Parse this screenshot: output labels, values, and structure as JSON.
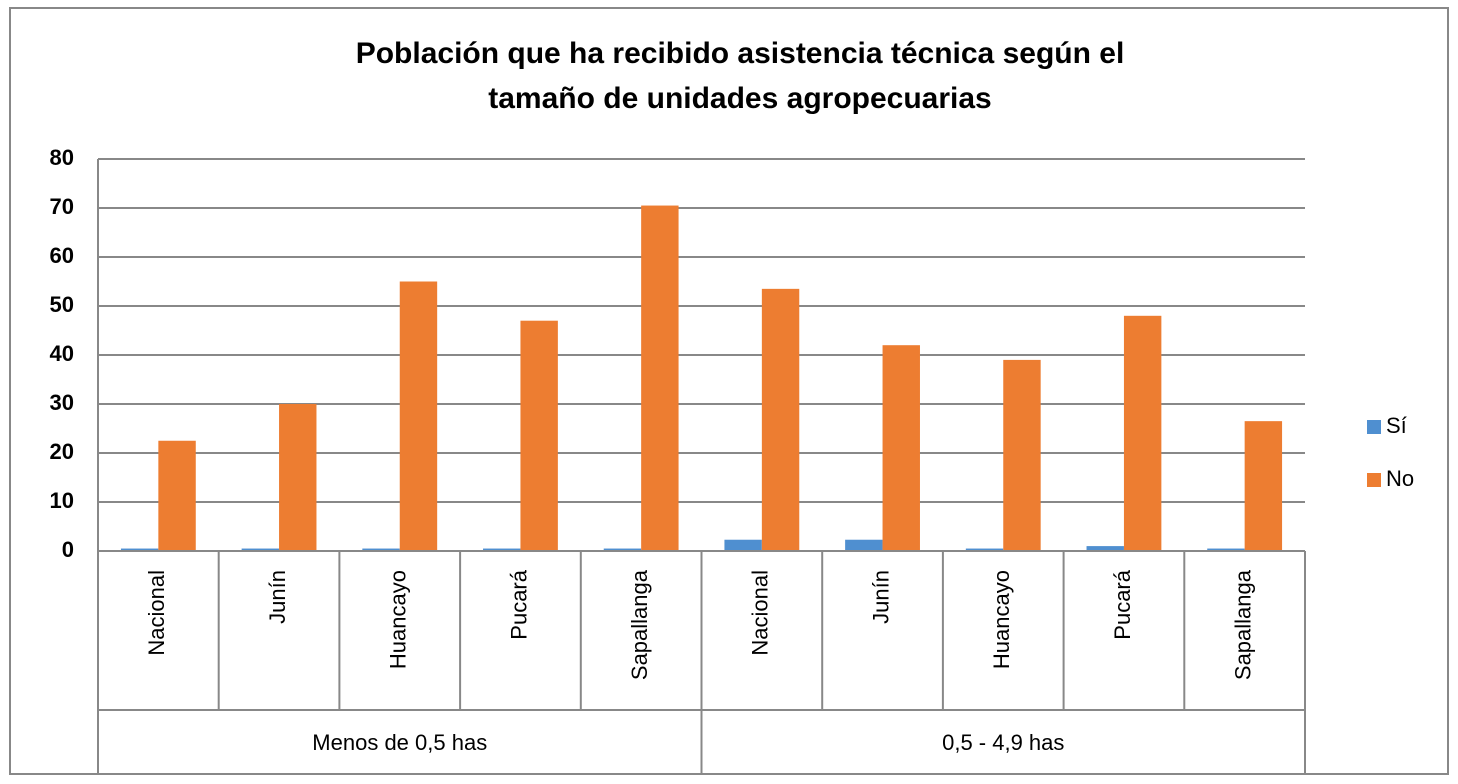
{
  "chart_data": {
    "type": "bar",
    "title": [
      "Población que ha recibido asistencia técnica según el",
      "tamaño de unidades agropecuarias"
    ],
    "category_groups": [
      {
        "label": "Menos de 0,5 has",
        "categories": [
          "Nacional",
          "Junín",
          "Huancayo",
          "Pucará",
          "Sapallanga"
        ]
      },
      {
        "label": "0,5 - 4,9 has",
        "categories": [
          "Nacional",
          "Junín",
          "Huancayo",
          "Pucará",
          "Sapallanga"
        ]
      }
    ],
    "series": [
      {
        "name": "Sí",
        "color": "#4f8fd0",
        "values": [
          0.5,
          0.5,
          0.5,
          0.5,
          0.5,
          2.3,
          2.3,
          0.5,
          1,
          0.5
        ]
      },
      {
        "name": "No",
        "color": "#ed7d31",
        "values": [
          22.5,
          30,
          55,
          47,
          70.5,
          53.5,
          42,
          39,
          48,
          26.5
        ]
      }
    ],
    "ylim": [
      0,
      80
    ],
    "yticks": [
      0,
      10,
      20,
      30,
      40,
      50,
      60,
      70,
      80
    ],
    "grid": true,
    "legend": "right"
  }
}
